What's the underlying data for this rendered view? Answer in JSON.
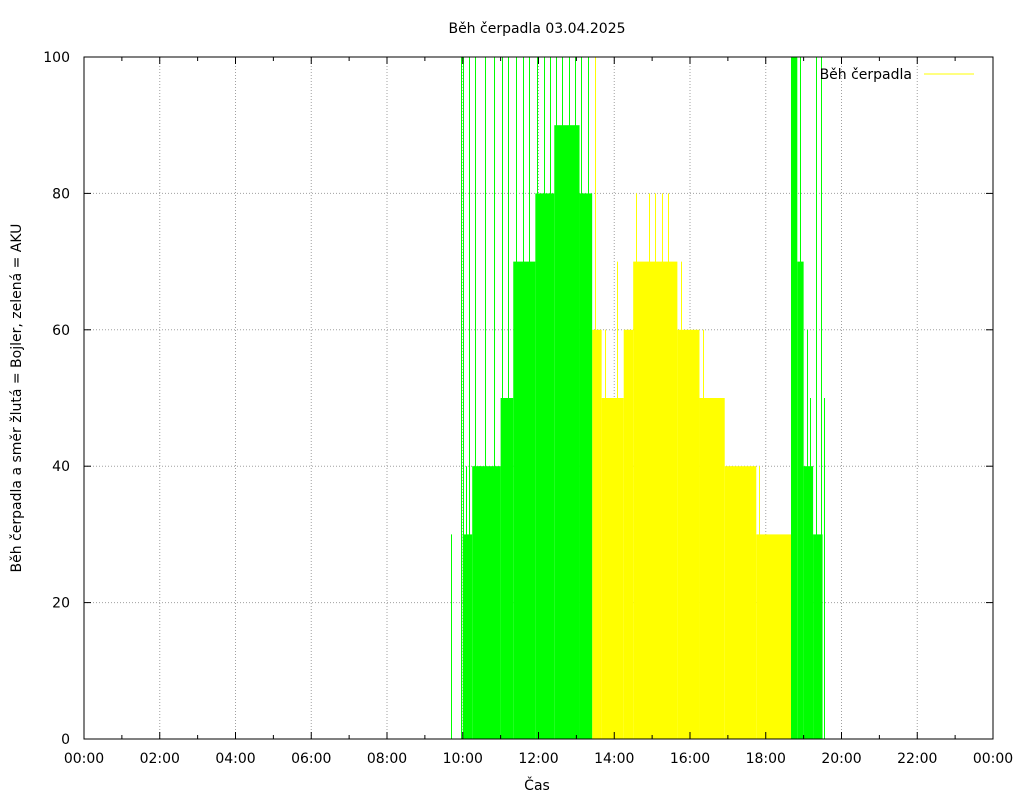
{
  "chart_data": {
    "type": "area",
    "title": "Běh čerpadla 03.04.2025",
    "xlabel": "Čas",
    "ylabel": "Běh čerpadla a směr žlutá = Bojler, zelená = AKU",
    "legend": {
      "label": "Běh čerpadla",
      "position": "top-right"
    },
    "xlim": [
      "00:00",
      "24:00"
    ],
    "ylim": [
      0,
      100
    ],
    "grid": true,
    "x_ticks": [
      "00:00",
      "02:00",
      "04:00",
      "06:00",
      "08:00",
      "10:00",
      "12:00",
      "14:00",
      "16:00",
      "18:00",
      "20:00",
      "22:00",
      "00:00"
    ],
    "y_ticks": [
      "0",
      "20",
      "40",
      "60",
      "80",
      "100"
    ],
    "colors": {
      "bojler": "#ffff00",
      "aku": "#00ff00",
      "legend_line": "#ffff00",
      "grid": "#a0a0a0"
    },
    "series": [
      {
        "name": "Bojler",
        "color": "#ffff00",
        "segments": [
          [
            "13:25",
            "13:40",
            60
          ],
          [
            "13:40",
            "14:15",
            50
          ],
          [
            "14:15",
            "14:30",
            60
          ],
          [
            "14:30",
            "15:40",
            70
          ],
          [
            "15:40",
            "16:15",
            60
          ],
          [
            "16:15",
            "16:55",
            50
          ],
          [
            "16:55",
            "17:45",
            40
          ],
          [
            "17:45",
            "18:40",
            30
          ]
        ],
        "spikes": [
          [
            "13:30",
            100
          ],
          [
            "13:35",
            60
          ],
          [
            "13:45",
            60
          ],
          [
            "14:05",
            70
          ],
          [
            "14:22",
            60
          ],
          [
            "14:35",
            80
          ],
          [
            "14:55",
            80
          ],
          [
            "15:05",
            80
          ],
          [
            "15:15",
            80
          ],
          [
            "15:25",
            80
          ],
          [
            "15:45",
            70
          ],
          [
            "16:00",
            60
          ],
          [
            "16:10",
            60
          ],
          [
            "16:20",
            60
          ],
          [
            "16:35",
            50
          ],
          [
            "16:50",
            50
          ],
          [
            "17:05",
            40
          ],
          [
            "17:20",
            40
          ],
          [
            "17:35",
            40
          ],
          [
            "17:50",
            40
          ]
        ]
      },
      {
        "name": "AKU",
        "color": "#00ff00",
        "segments": [
          [
            "10:00",
            "10:15",
            30
          ],
          [
            "10:15",
            "10:40",
            40
          ],
          [
            "10:40",
            "11:00",
            40
          ],
          [
            "11:00",
            "11:20",
            50
          ],
          [
            "11:20",
            "11:55",
            70
          ],
          [
            "11:55",
            "12:25",
            80
          ],
          [
            "12:25",
            "13:05",
            90
          ],
          [
            "13:05",
            "13:25",
            80
          ],
          [
            "18:40",
            "18:50",
            100
          ],
          [
            "18:50",
            "19:00",
            70
          ],
          [
            "19:00",
            "19:15",
            40
          ],
          [
            "19:15",
            "19:30",
            30
          ]
        ],
        "spikes": [
          [
            "09:42",
            30
          ],
          [
            "09:57",
            100
          ],
          [
            "10:00",
            100
          ],
          [
            "10:05",
            40
          ],
          [
            "10:10",
            100
          ],
          [
            "10:20",
            100
          ],
          [
            "10:25",
            40
          ],
          [
            "10:35",
            100
          ],
          [
            "10:50",
            100
          ],
          [
            "11:02",
            100
          ],
          [
            "11:12",
            100
          ],
          [
            "11:25",
            100
          ],
          [
            "11:35",
            100
          ],
          [
            "11:45",
            100
          ],
          [
            "11:58",
            100
          ],
          [
            "12:08",
            100
          ],
          [
            "12:18",
            100
          ],
          [
            "12:28",
            100
          ],
          [
            "12:38",
            100
          ],
          [
            "12:48",
            100
          ],
          [
            "12:58",
            100
          ],
          [
            "13:08",
            100
          ],
          [
            "13:18",
            100
          ],
          [
            "18:45",
            100
          ],
          [
            "18:55",
            100
          ],
          [
            "19:05",
            60
          ],
          [
            "19:10",
            50
          ],
          [
            "19:20",
            100
          ],
          [
            "19:28",
            100
          ],
          [
            "19:32",
            50
          ]
        ]
      }
    ]
  }
}
